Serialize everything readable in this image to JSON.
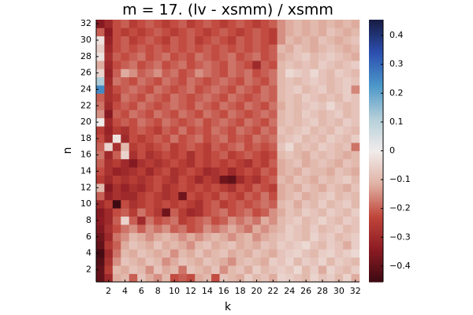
{
  "chart_data": {
    "type": "heatmap",
    "title": "m = 17. (lv - xsmm) / xsmm",
    "xlabel": "k",
    "ylabel": "n",
    "x": [
      1,
      2,
      3,
      4,
      5,
      6,
      7,
      8,
      9,
      10,
      11,
      12,
      13,
      14,
      15,
      16,
      17,
      18,
      19,
      20,
      21,
      22,
      23,
      24,
      25,
      26,
      27,
      28,
      29,
      30,
      31,
      32
    ],
    "y": [
      1,
      2,
      3,
      4,
      5,
      6,
      7,
      8,
      9,
      10,
      11,
      12,
      13,
      14,
      15,
      16,
      17,
      18,
      19,
      20,
      21,
      22,
      23,
      24,
      25,
      26,
      27,
      28,
      29,
      30,
      31,
      32
    ],
    "xlim": [
      0.5,
      32.5
    ],
    "ylim": [
      0.5,
      32.5
    ],
    "xticks": [
      2,
      4,
      6,
      8,
      10,
      12,
      14,
      16,
      18,
      20,
      22,
      24,
      26,
      28,
      30,
      32
    ],
    "yticks": [
      2,
      4,
      6,
      8,
      10,
      12,
      14,
      16,
      18,
      20,
      22,
      24,
      26,
      28,
      30,
      32
    ],
    "clim": [
      -0.455,
      0.455
    ],
    "cticks": [
      {
        "value": -0.4,
        "label": "−0.4"
      },
      {
        "value": -0.3,
        "label": "−0.3"
      },
      {
        "value": -0.2,
        "label": "−0.2"
      },
      {
        "value": -0.1,
        "label": "−0.1"
      },
      0,
      0.1,
      0.2,
      0.3,
      0.4
    ],
    "colorscale": [
      "#3c0912",
      "#8c1b23",
      "#c0453a",
      "#e0b2a5",
      "#f1eceb",
      "#b4cfd9",
      "#4b97c9",
      "#2c4fb0",
      "#181c43"
    ],
    "z": [
      [
        -0.4,
        -0.3,
        -0.12,
        -0.1,
        -0.2,
        -0.08,
        -0.12,
        -0.15,
        -0.1,
        -0.22,
        -0.2,
        -0.22,
        -0.12,
        -0.1,
        -0.22,
        -0.08,
        -0.1,
        -0.12,
        -0.06,
        -0.1,
        -0.08,
        -0.12,
        -0.05,
        -0.06,
        -0.08,
        -0.1,
        -0.05,
        -0.08,
        -0.06,
        -0.1,
        -0.05,
        -0.12
      ],
      [
        -0.4,
        -0.25,
        -0.1,
        -0.12,
        -0.08,
        -0.1,
        -0.15,
        -0.08,
        -0.12,
        -0.1,
        -0.18,
        -0.08,
        -0.1,
        -0.12,
        -0.08,
        -0.15,
        -0.1,
        -0.08,
        -0.12,
        -0.06,
        -0.1,
        -0.08,
        -0.06,
        -0.08,
        -0.04,
        -0.1,
        -0.06,
        -0.12,
        -0.05,
        -0.08,
        -0.1,
        -0.06
      ],
      [
        -0.42,
        -0.28,
        -0.15,
        -0.08,
        -0.1,
        -0.12,
        -0.08,
        -0.1,
        -0.15,
        -0.12,
        -0.08,
        -0.1,
        -0.12,
        -0.08,
        -0.1,
        -0.12,
        -0.15,
        -0.1,
        -0.08,
        -0.1,
        -0.12,
        -0.06,
        -0.08,
        -0.05,
        -0.1,
        -0.06,
        -0.08,
        -0.05,
        -0.1,
        -0.06,
        -0.08,
        -0.1
      ],
      [
        -0.44,
        -0.3,
        -0.18,
        -0.1,
        -0.12,
        -0.08,
        -0.1,
        -0.12,
        -0.1,
        -0.15,
        -0.1,
        -0.12,
        -0.08,
        -0.12,
        -0.1,
        -0.08,
        -0.12,
        -0.1,
        -0.12,
        -0.08,
        -0.1,
        -0.12,
        -0.08,
        -0.06,
        -0.05,
        -0.08,
        -0.1,
        -0.06,
        -0.05,
        -0.08,
        -0.06,
        -0.04
      ],
      [
        -0.4,
        -0.26,
        -0.2,
        -0.12,
        -0.08,
        -0.1,
        -0.12,
        -0.08,
        -0.12,
        -0.1,
        -0.12,
        -0.15,
        -0.1,
        -0.08,
        -0.12,
        -0.1,
        -0.08,
        -0.12,
        -0.1,
        -0.12,
        -0.08,
        -0.1,
        -0.06,
        -0.08,
        -0.06,
        -0.04,
        -0.08,
        -0.1,
        -0.06,
        -0.08,
        -0.12,
        -0.06
      ],
      [
        -0.38,
        -0.3,
        -0.18,
        -0.15,
        -0.1,
        -0.12,
        -0.15,
        -0.12,
        -0.1,
        -0.12,
        -0.15,
        -0.12,
        -0.15,
        -0.12,
        -0.1,
        -0.12,
        -0.15,
        -0.12,
        -0.1,
        -0.15,
        -0.12,
        -0.1,
        -0.08,
        -0.06,
        -0.08,
        -0.1,
        -0.05,
        -0.08,
        -0.06,
        -0.1,
        -0.08,
        -0.06
      ],
      [
        -0.36,
        -0.28,
        -0.22,
        -0.18,
        -0.15,
        -0.2,
        -0.15,
        -0.18,
        -0.15,
        -0.2,
        -0.18,
        -0.22,
        -0.2,
        -0.15,
        -0.18,
        -0.15,
        -0.12,
        -0.15,
        -0.18,
        -0.12,
        -0.15,
        -0.12,
        -0.1,
        -0.06,
        -0.08,
        -0.1,
        -0.06,
        -0.1,
        -0.08,
        -0.06,
        -0.1,
        -0.08
      ],
      [
        -0.34,
        -0.3,
        -0.2,
        -0.05,
        -0.2,
        -0.3,
        -0.18,
        -0.22,
        -0.2,
        -0.18,
        -0.25,
        -0.22,
        -0.2,
        -0.18,
        -0.22,
        -0.2,
        -0.15,
        -0.18,
        -0.15,
        -0.18,
        -0.12,
        -0.15,
        -0.1,
        -0.08,
        -0.06,
        -0.1,
        -0.08,
        -0.05,
        -0.08,
        -0.1,
        -0.06,
        -0.08
      ],
      [
        -0.35,
        -0.3,
        -0.22,
        -0.2,
        -0.25,
        -0.18,
        -0.22,
        -0.26,
        -0.38,
        -0.2,
        -0.25,
        -0.3,
        -0.28,
        -0.22,
        -0.2,
        -0.18,
        -0.22,
        -0.2,
        -0.18,
        -0.22,
        -0.2,
        -0.15,
        -0.12,
        -0.08,
        -0.1,
        -0.06,
        -0.08,
        -0.1,
        -0.06,
        -0.08,
        -0.1,
        -0.06
      ],
      [
        -0.3,
        -0.25,
        -0.45,
        -0.22,
        -0.28,
        -0.25,
        -0.22,
        -0.25,
        -0.22,
        -0.25,
        -0.22,
        -0.25,
        -0.28,
        -0.22,
        -0.2,
        -0.25,
        -0.22,
        -0.2,
        -0.22,
        -0.2,
        -0.18,
        -0.2,
        -0.1,
        -0.08,
        -0.12,
        -0.08,
        -0.1,
        -0.06,
        -0.1,
        -0.08,
        -0.06,
        -0.1
      ],
      [
        -0.2,
        -0.32,
        -0.28,
        -0.3,
        -0.3,
        -0.25,
        -0.22,
        -0.25,
        -0.28,
        -0.25,
        -0.38,
        -0.22,
        -0.25,
        -0.22,
        -0.25,
        -0.2,
        -0.22,
        -0.25,
        -0.2,
        -0.22,
        -0.18,
        -0.22,
        -0.12,
        -0.1,
        -0.08,
        -0.12,
        -0.1,
        -0.08,
        -0.06,
        -0.1,
        -0.08,
        -0.1
      ],
      [
        -0.1,
        -0.35,
        -0.28,
        -0.32,
        -0.28,
        -0.3,
        -0.25,
        -0.22,
        -0.28,
        -0.25,
        -0.22,
        -0.25,
        -0.22,
        -0.25,
        -0.22,
        -0.25,
        -0.28,
        -0.22,
        -0.25,
        -0.2,
        -0.22,
        -0.25,
        -0.12,
        -0.1,
        -0.12,
        -0.08,
        -0.1,
        -0.12,
        -0.08,
        -0.1,
        -0.12,
        -0.08
      ],
      [
        -0.25,
        -0.3,
        -0.25,
        -0.28,
        -0.25,
        -0.28,
        -0.25,
        -0.22,
        -0.25,
        -0.28,
        -0.22,
        -0.25,
        -0.3,
        -0.25,
        -0.28,
        -0.38,
        -0.4,
        -0.3,
        -0.25,
        -0.28,
        -0.22,
        -0.2,
        -0.1,
        -0.12,
        -0.08,
        -0.1,
        -0.12,
        -0.08,
        -0.1,
        -0.08,
        -0.06,
        -0.1
      ],
      [
        -0.22,
        -0.28,
        -0.32,
        -0.3,
        -0.28,
        -0.25,
        -0.3,
        -0.25,
        -0.22,
        -0.28,
        -0.25,
        -0.22,
        -0.25,
        -0.3,
        -0.28,
        -0.25,
        -0.3,
        -0.25,
        -0.22,
        -0.25,
        -0.2,
        -0.22,
        -0.12,
        -0.1,
        -0.12,
        -0.08,
        -0.1,
        -0.1,
        -0.12,
        -0.08,
        -0.1,
        -0.12
      ],
      [
        -0.2,
        -0.28,
        -0.25,
        -0.3,
        -0.35,
        -0.28,
        -0.25,
        -0.28,
        -0.25,
        -0.22,
        -0.25,
        -0.28,
        -0.22,
        -0.25,
        -0.22,
        -0.25,
        -0.22,
        -0.25,
        -0.28,
        -0.22,
        -0.25,
        -0.2,
        -0.12,
        -0.1,
        -0.08,
        -0.12,
        -0.1,
        -0.08,
        -0.1,
        -0.12,
        -0.08,
        -0.1
      ],
      [
        -0.18,
        -0.3,
        -0.2,
        -0.05,
        -0.28,
        -0.22,
        -0.28,
        -0.25,
        -0.22,
        -0.25,
        -0.22,
        -0.28,
        -0.22,
        -0.25,
        -0.22,
        -0.2,
        -0.25,
        -0.22,
        -0.2,
        -0.22,
        -0.25,
        -0.22,
        -0.1,
        -0.08,
        -0.1,
        -0.12,
        -0.08,
        -0.1,
        -0.08,
        -0.1,
        -0.12,
        -0.1
      ],
      [
        -0.2,
        -0.05,
        -0.28,
        -0.1,
        -0.25,
        -0.22,
        -0.25,
        -0.22,
        -0.2,
        -0.25,
        -0.22,
        -0.2,
        -0.22,
        -0.25,
        -0.2,
        -0.22,
        -0.2,
        -0.18,
        -0.22,
        -0.2,
        -0.22,
        -0.2,
        -0.08,
        -0.04,
        -0.1,
        -0.08,
        -0.1,
        -0.06,
        -0.08,
        -0.1,
        -0.08,
        -0.18
      ],
      [
        -0.22,
        -0.3,
        -0.02,
        -0.3,
        -0.22,
        -0.25,
        -0.22,
        -0.2,
        -0.22,
        -0.18,
        -0.22,
        -0.2,
        -0.18,
        -0.22,
        -0.2,
        -0.18,
        -0.22,
        -0.2,
        -0.22,
        -0.18,
        -0.2,
        -0.18,
        -0.1,
        -0.08,
        -0.06,
        -0.1,
        -0.08,
        -0.1,
        -0.06,
        -0.08,
        -0.1,
        -0.06
      ],
      [
        -0.25,
        -0.32,
        -0.25,
        -0.28,
        -0.22,
        -0.2,
        -0.22,
        -0.25,
        -0.2,
        -0.22,
        -0.18,
        -0.22,
        -0.2,
        -0.22,
        -0.18,
        -0.2,
        -0.22,
        -0.18,
        -0.2,
        -0.22,
        -0.18,
        -0.2,
        -0.08,
        -0.1,
        -0.08,
        -0.06,
        -0.1,
        -0.08,
        -0.1,
        -0.06,
        -0.08,
        -0.1
      ],
      [
        0.0,
        -0.3,
        -0.22,
        -0.2,
        -0.22,
        -0.18,
        -0.2,
        -0.22,
        -0.18,
        -0.2,
        -0.22,
        -0.2,
        -0.18,
        -0.22,
        -0.2,
        -0.18,
        -0.2,
        -0.22,
        -0.18,
        -0.2,
        -0.22,
        -0.18,
        -0.1,
        -0.08,
        -0.1,
        -0.08,
        -0.06,
        -0.1,
        -0.08,
        -0.1,
        -0.06,
        -0.08
      ],
      [
        -0.15,
        -0.35,
        -0.2,
        -0.22,
        -0.18,
        -0.2,
        -0.22,
        -0.18,
        -0.2,
        -0.22,
        -0.18,
        -0.2,
        -0.22,
        -0.18,
        -0.2,
        -0.22,
        -0.18,
        -0.2,
        -0.22,
        -0.2,
        -0.18,
        -0.2,
        -0.1,
        -0.08,
        -0.1,
        -0.06,
        -0.08,
        -0.1,
        -0.08,
        -0.06,
        -0.1,
        -0.08
      ],
      [
        -0.18,
        -0.3,
        -0.22,
        -0.2,
        -0.22,
        -0.18,
        -0.2,
        -0.22,
        -0.2,
        -0.18,
        -0.2,
        -0.22,
        -0.18,
        -0.2,
        -0.22,
        -0.18,
        -0.2,
        -0.22,
        -0.18,
        -0.2,
        -0.22,
        -0.18,
        -0.12,
        -0.08,
        -0.1,
        -0.08,
        -0.06,
        -0.08,
        -0.04,
        -0.08,
        -0.1,
        -0.08
      ],
      [
        -0.2,
        -0.28,
        -0.25,
        -0.18,
        -0.2,
        -0.22,
        -0.18,
        -0.2,
        -0.22,
        -0.18,
        -0.2,
        -0.22,
        -0.2,
        -0.18,
        -0.2,
        -0.22,
        -0.18,
        -0.2,
        -0.22,
        -0.2,
        -0.18,
        -0.2,
        -0.1,
        -0.08,
        -0.1,
        -0.06,
        -0.08,
        -0.1,
        -0.08,
        -0.1,
        -0.06,
        -0.08
      ],
      [
        0.25,
        -0.28,
        -0.22,
        -0.2,
        -0.18,
        -0.2,
        -0.22,
        -0.18,
        -0.2,
        -0.22,
        -0.2,
        -0.18,
        -0.22,
        -0.2,
        -0.18,
        -0.2,
        -0.22,
        -0.18,
        -0.2,
        -0.22,
        -0.18,
        -0.2,
        -0.1,
        -0.08,
        -0.06,
        -0.1,
        -0.08,
        -0.06,
        -0.1,
        -0.08,
        -0.06,
        -0.16
      ],
      [
        0.12,
        -0.3,
        -0.18,
        -0.2,
        -0.22,
        -0.18,
        -0.2,
        -0.22,
        -0.18,
        -0.2,
        -0.22,
        -0.18,
        -0.2,
        -0.22,
        -0.2,
        -0.18,
        -0.2,
        -0.22,
        -0.18,
        -0.2,
        -0.22,
        -0.18,
        -0.1,
        -0.08,
        -0.1,
        -0.08,
        -0.06,
        -0.08,
        -0.1,
        -0.08,
        -0.06,
        -0.08
      ],
      [
        -0.05,
        -0.32,
        -0.2,
        -0.12,
        -0.15,
        -0.2,
        -0.18,
        -0.15,
        -0.2,
        -0.18,
        -0.22,
        -0.2,
        -0.15,
        -0.18,
        -0.2,
        -0.22,
        -0.18,
        -0.2,
        -0.18,
        -0.22,
        -0.2,
        -0.18,
        -0.1,
        -0.04,
        -0.06,
        -0.08,
        -0.04,
        -0.08,
        -0.1,
        -0.06,
        -0.08,
        -0.1
      ],
      [
        -0.12,
        -0.3,
        -0.22,
        -0.2,
        -0.18,
        -0.22,
        -0.2,
        -0.18,
        -0.22,
        -0.2,
        -0.18,
        -0.22,
        -0.2,
        -0.18,
        -0.2,
        -0.22,
        -0.18,
        -0.2,
        -0.22,
        -0.3,
        -0.2,
        -0.22,
        -0.1,
        -0.08,
        -0.1,
        -0.08,
        -0.1,
        -0.06,
        -0.08,
        -0.1,
        -0.08,
        -0.06
      ],
      [
        -0.02,
        -0.28,
        -0.2,
        -0.22,
        -0.2,
        -0.18,
        -0.22,
        -0.2,
        -0.18,
        -0.22,
        -0.2,
        -0.22,
        -0.18,
        -0.2,
        -0.22,
        -0.2,
        -0.18,
        -0.22,
        -0.2,
        -0.18,
        -0.22,
        -0.2,
        -0.12,
        -0.1,
        -0.08,
        -0.06,
        -0.1,
        -0.08,
        -0.06,
        -0.08,
        -0.1,
        -0.12
      ],
      [
        -0.06,
        -0.3,
        -0.22,
        -0.2,
        -0.22,
        -0.2,
        -0.22,
        -0.2,
        -0.22,
        -0.2,
        -0.22,
        -0.2,
        -0.22,
        -0.2,
        -0.22,
        -0.2,
        -0.22,
        -0.2,
        -0.22,
        -0.2,
        -0.22,
        -0.2,
        -0.1,
        -0.12,
        -0.08,
        -0.1,
        -0.12,
        -0.1,
        -0.08,
        -0.1,
        -0.12,
        -0.1
      ],
      [
        -0.02,
        -0.32,
        -0.22,
        -0.2,
        -0.25,
        -0.22,
        -0.2,
        -0.22,
        -0.25,
        -0.2,
        -0.22,
        -0.2,
        -0.25,
        -0.22,
        -0.2,
        -0.22,
        -0.25,
        -0.2,
        -0.22,
        -0.2,
        -0.22,
        -0.25,
        -0.15,
        -0.1,
        -0.12,
        -0.1,
        -0.12,
        -0.08,
        -0.1,
        -0.12,
        -0.1,
        -0.08
      ],
      [
        -0.2,
        -0.34,
        -0.22,
        -0.25,
        -0.22,
        -0.25,
        -0.22,
        -0.2,
        -0.22,
        -0.25,
        -0.22,
        -0.2,
        -0.22,
        -0.25,
        -0.22,
        -0.2,
        -0.22,
        -0.25,
        -0.22,
        -0.2,
        -0.22,
        -0.25,
        -0.15,
        -0.12,
        -0.1,
        -0.12,
        -0.1,
        -0.12,
        -0.08,
        -0.1,
        -0.12,
        -0.1
      ],
      [
        -0.35,
        -0.3,
        -0.22,
        -0.2,
        -0.25,
        -0.22,
        -0.2,
        -0.22,
        -0.25,
        -0.22,
        -0.2,
        -0.25,
        -0.22,
        -0.2,
        -0.22,
        -0.25,
        -0.22,
        -0.2,
        -0.22,
        -0.25,
        -0.22,
        -0.2,
        -0.15,
        -0.12,
        -0.1,
        -0.12,
        -0.1,
        -0.12,
        -0.1,
        -0.12,
        -0.1,
        -0.12
      ]
    ]
  }
}
